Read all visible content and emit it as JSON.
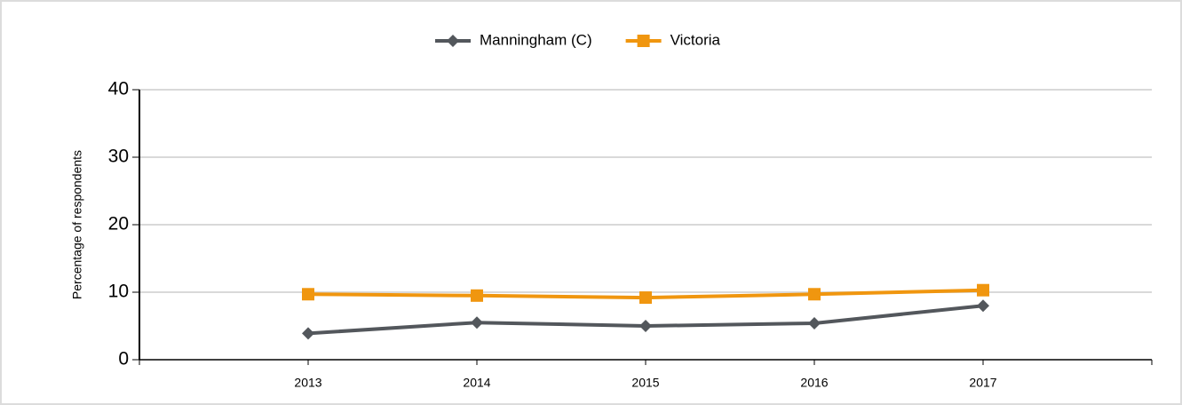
{
  "chart_data": {
    "type": "line",
    "y_label": "Percentage of respondents",
    "categories": [
      "2013",
      "2014",
      "2015",
      "2016",
      "2017"
    ],
    "series": [
      {
        "name": "Manningham (C)",
        "color": "#53575c",
        "marker": "diamond",
        "values": [
          3.9,
          5.5,
          5.0,
          5.4,
          8.0
        ]
      },
      {
        "name": "Victoria",
        "color": "#f0960f",
        "marker": "square",
        "values": [
          9.7,
          9.5,
          9.2,
          9.7,
          10.3
        ]
      }
    ],
    "ylim": [
      0,
      40
    ],
    "yticks": [
      0,
      10,
      20,
      30,
      40
    ],
    "grid": true,
    "legend": "top"
  }
}
